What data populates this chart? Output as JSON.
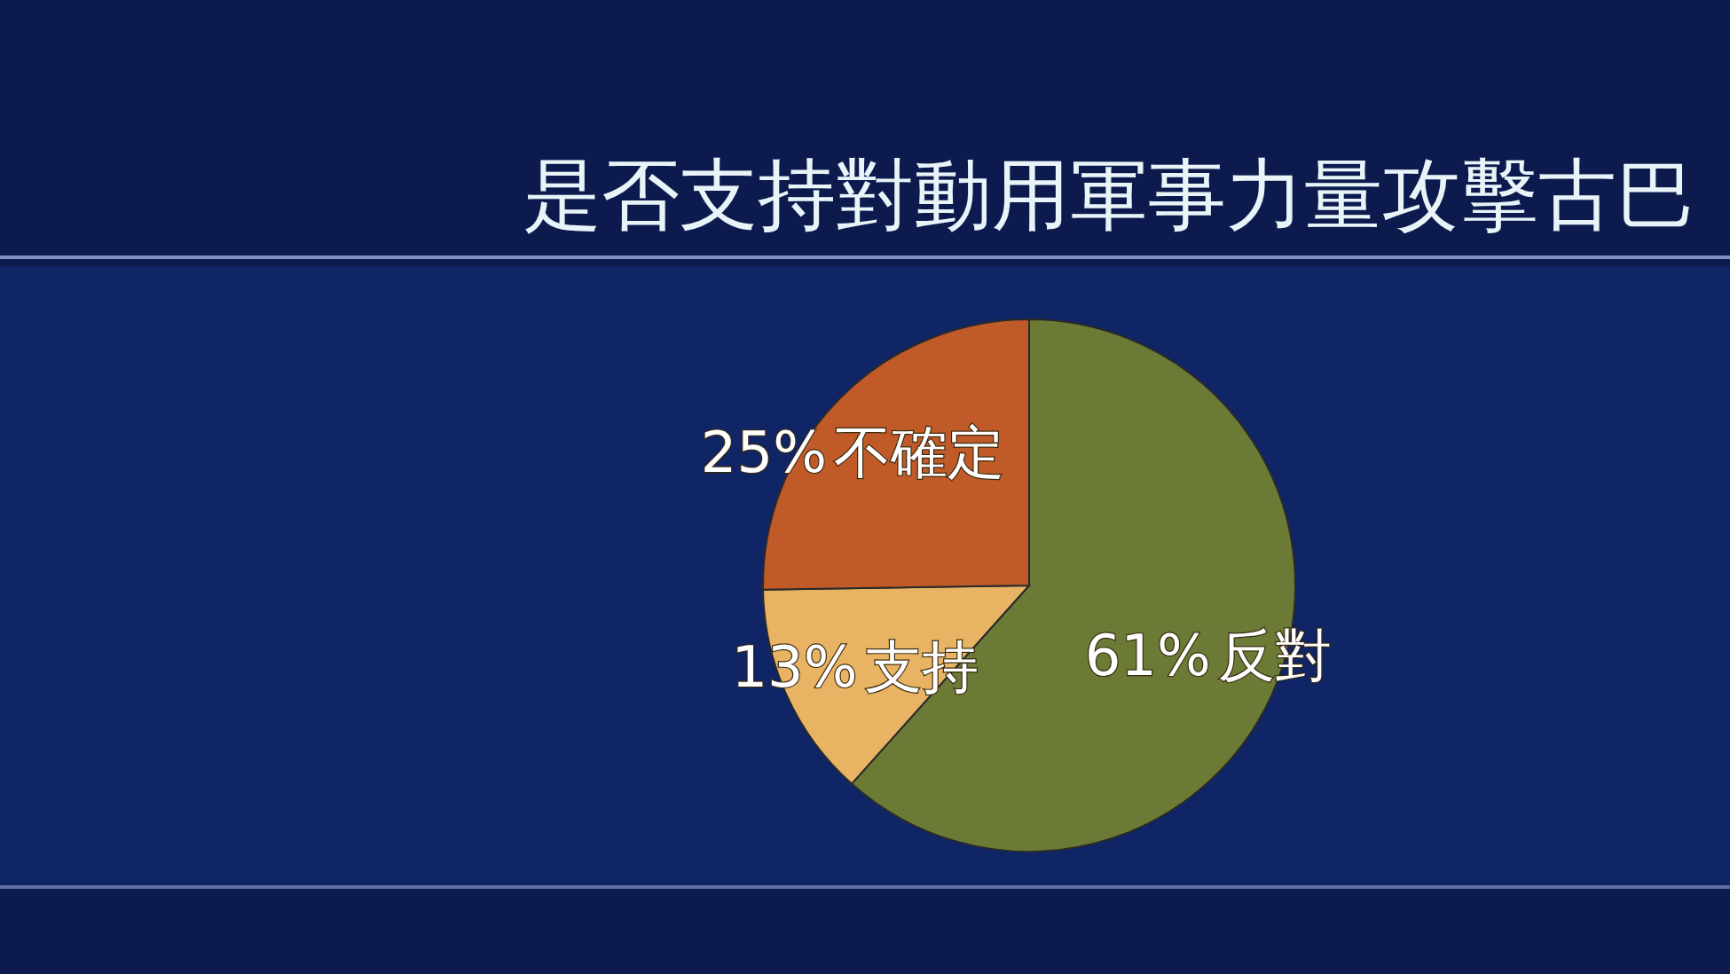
{
  "chart_data": {
    "type": "pie",
    "title": "是否支持對動用軍事力量攻擊古巴",
    "categories": [
      "反對",
      "支持",
      "不確定"
    ],
    "values": [
      61,
      13,
      25
    ],
    "colors": [
      "#6b7a35",
      "#e8b464",
      "#c05a28"
    ],
    "value_labels": [
      "61%",
      "13%",
      "25%"
    ]
  }
}
